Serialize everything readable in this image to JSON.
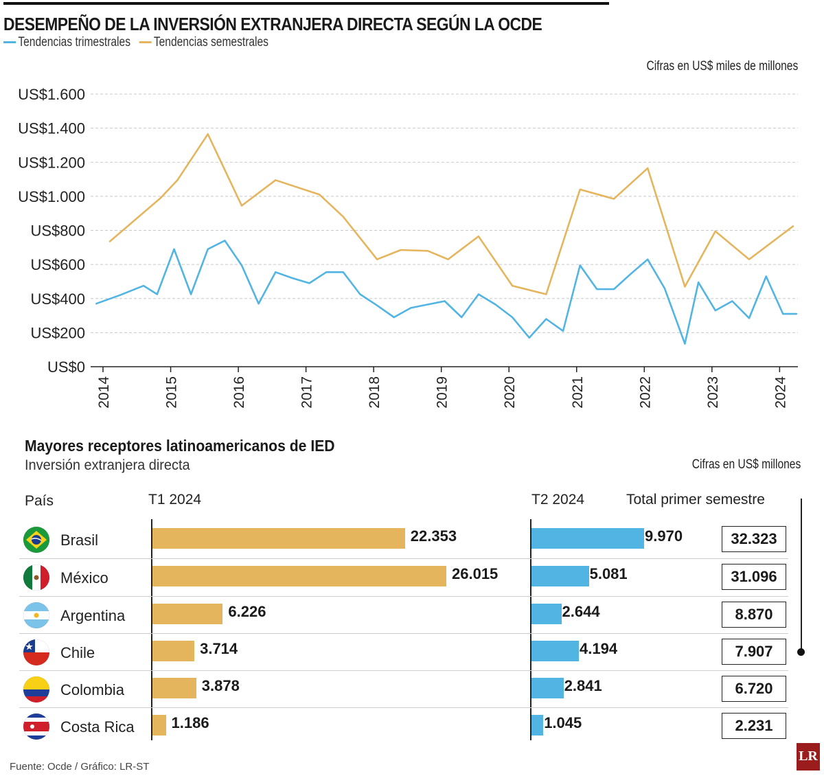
{
  "header": {
    "title": "DESEMPEÑO DE LA INVERSIÓN EXTRANJERA DIRECTA SEGÚN LA OCDE",
    "legend": [
      {
        "label": "Tendencias trimestrales",
        "color": "#52b4e3"
      },
      {
        "label": "Tendencias semestrales",
        "color": "#e5b55e"
      }
    ],
    "units": "Cifras en US$ miles de millones"
  },
  "chart_data": [
    {
      "type": "line",
      "title": "DESEMPEÑO DE LA INVERSIÓN EXTRANJERA DIRECTA SEGÚN LA OCDE",
      "ylabel": "Cifras en US$ miles de millones",
      "ylim": [
        0,
        1600
      ],
      "yticks": [
        0,
        200,
        400,
        600,
        800,
        1000,
        1200,
        1400,
        1600
      ],
      "ytick_labels": [
        "US$0",
        "US$200",
        "US$400",
        "US$600",
        "US$800",
        "US$1.000",
        "US$1.200",
        "US$1.400",
        "US$1.600"
      ],
      "xlim": [
        2014,
        2024.25
      ],
      "xticks": [
        2014,
        2015,
        2016,
        2017,
        2018,
        2019,
        2020,
        2021,
        2022,
        2023,
        2024
      ],
      "grid": true,
      "series": [
        {
          "name": "Tendencias trimestrales",
          "color": "#52b4e3",
          "x": [
            2013.9,
            2014.25,
            2014.6,
            2014.8,
            2015.05,
            2015.3,
            2015.55,
            2015.8,
            2016.05,
            2016.3,
            2016.55,
            2016.8,
            2017.05,
            2017.3,
            2017.55,
            2017.8,
            2018.05,
            2018.3,
            2018.55,
            2018.8,
            2019.05,
            2019.3,
            2019.55,
            2019.8,
            2020.05,
            2020.3,
            2020.55,
            2020.8,
            2021.05,
            2021.3,
            2021.55,
            2021.8,
            2022.05,
            2022.3,
            2022.6,
            2022.8,
            2023.05,
            2023.3,
            2023.55,
            2023.8,
            2024.05,
            2024.25
          ],
          "values": [
            370,
            420,
            475,
            425,
            690,
            425,
            690,
            740,
            595,
            370,
            555,
            520,
            490,
            555,
            555,
            425,
            360,
            290,
            345,
            365,
            385,
            290,
            425,
            365,
            290,
            170,
            280,
            210,
            595,
            455,
            455,
            545,
            630,
            460,
            135,
            495,
            330,
            385,
            285,
            530,
            310,
            310
          ]
        },
        {
          "name": "Tendencias semestrales",
          "color": "#e5b55e",
          "x": [
            2014.1,
            2014.85,
            2015.1,
            2015.55,
            2016.05,
            2016.55,
            2017.2,
            2017.55,
            2018.05,
            2018.4,
            2018.8,
            2019.1,
            2019.55,
            2020.05,
            2020.55,
            2021.05,
            2021.55,
            2022.05,
            2022.6,
            2023.05,
            2023.55,
            2024.2
          ],
          "values": [
            735,
            990,
            1095,
            1365,
            945,
            1095,
            1010,
            880,
            630,
            685,
            680,
            630,
            765,
            475,
            425,
            1040,
            985,
            1165,
            470,
            795,
            630,
            825
          ]
        }
      ]
    },
    {
      "type": "bar",
      "title": "Mayores receptores latinoamericanos de IED",
      "subtitle": "Inversión extranjera directa",
      "units": "Cifras en US$ millones",
      "column_header": "País",
      "categories": [
        "Brasil",
        "México",
        "Argentina",
        "Chile",
        "Colombia",
        "Costa Rica"
      ],
      "series": [
        {
          "name": "T1 2024",
          "color": "#e5b55e",
          "values": [
            22353,
            26015,
            6226,
            3714,
            3878,
            1186
          ],
          "labels": [
            "22.353",
            "26.015",
            "6.226",
            "3.714",
            "3.878",
            "1.186"
          ]
        },
        {
          "name": "T2 2024",
          "color": "#52b4e3",
          "values": [
            9970,
            5081,
            2644,
            4194,
            2841,
            1045
          ],
          "labels": [
            "9.970",
            "5.081",
            "2.644",
            "4.194",
            "2.841",
            "1.045"
          ]
        },
        {
          "name": "Total primer semestre",
          "values": [
            32323,
            31096,
            8870,
            7907,
            6720,
            2231
          ],
          "labels": [
            "32.323",
            "31.096",
            "8.870",
            "7.907",
            "6.720",
            "2.231"
          ]
        }
      ]
    }
  ],
  "footer": {
    "source": "Fuente: Ocde / Gráfico: LR-ST",
    "logo": "LR"
  }
}
